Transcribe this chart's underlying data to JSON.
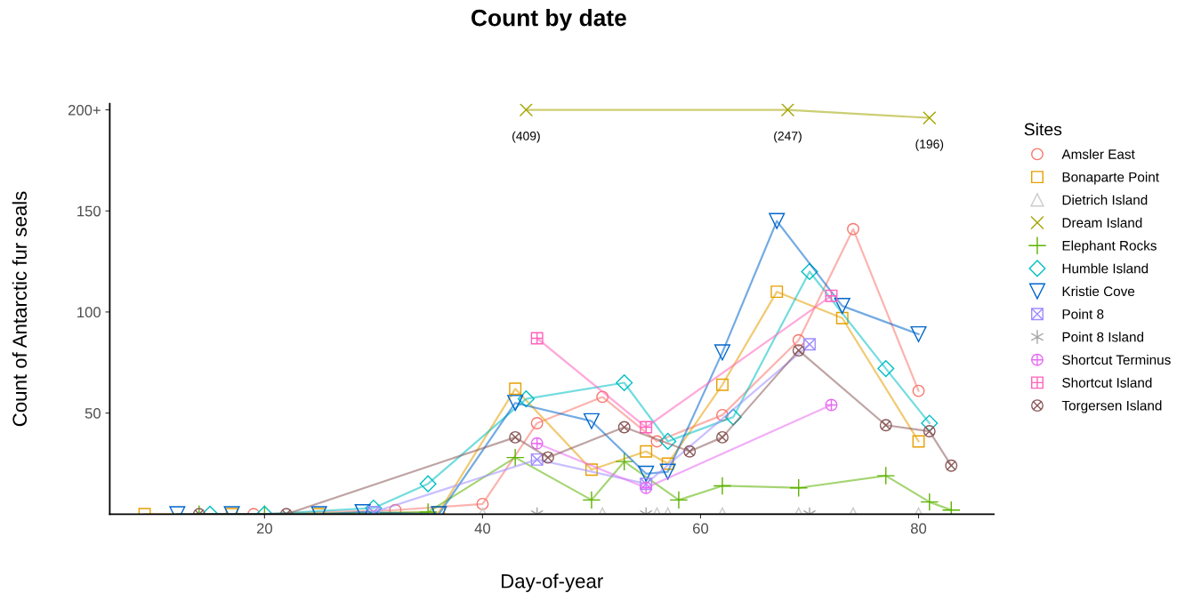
{
  "chart_data": {
    "type": "line",
    "title": "Count by date",
    "xlabel": "Day-of-year",
    "ylabel": "Count of Antarctic fur seals",
    "legend_title": "Sites",
    "legend": "right",
    "grid": false,
    "xlim": [
      5.8,
      86.9
    ],
    "xticks": [
      20,
      40,
      60,
      80
    ],
    "ylim": [
      0,
      203
    ],
    "yticks": [
      50,
      100,
      150,
      {
        "value": 200,
        "label": "200+"
      }
    ],
    "series": [
      {
        "name": "Amsler East",
        "color": "#f8766d",
        "marker": "circle",
        "x": [
          19,
          32,
          40,
          45,
          51,
          56,
          62,
          69,
          74,
          80
        ],
        "values": [
          0,
          2,
          5,
          45,
          58,
          36,
          49,
          86,
          141,
          61
        ]
      },
      {
        "name": "Bonaparte Point",
        "color": "#e69f00",
        "marker": "square",
        "x": [
          9,
          17,
          25,
          36,
          43,
          50,
          55,
          57,
          62,
          67,
          73,
          80
        ],
        "values": [
          0,
          0,
          0,
          1,
          62,
          22,
          31,
          25,
          64,
          110,
          97,
          36
        ]
      },
      {
        "name": "Dietrich Island",
        "color": "#cccccc",
        "marker": "triangle",
        "x": [
          40,
          51,
          56,
          57,
          62,
          69,
          74,
          80
        ],
        "values": [
          0,
          0,
          0,
          0,
          0,
          0,
          0,
          0
        ]
      },
      {
        "name": "Dream Island",
        "color": "#a3a500",
        "marker": "x",
        "x": [
          44,
          68,
          81
        ],
        "values": [
          200,
          200,
          196
        ]
      },
      {
        "name": "Elephant Rocks",
        "color": "#5bb300",
        "marker": "plus",
        "x": [
          14,
          20,
          35,
          43,
          50,
          53,
          58,
          62,
          69,
          77,
          81,
          83
        ],
        "values": [
          0,
          0,
          1,
          28,
          7,
          26,
          7,
          14,
          13,
          19,
          6,
          2
        ]
      },
      {
        "name": "Humble Island",
        "color": "#00bfc4",
        "marker": "diamond",
        "x": [
          15,
          20,
          30,
          35,
          44,
          53,
          57,
          63,
          70,
          77,
          81
        ],
        "values": [
          0,
          0,
          3,
          15,
          57,
          65,
          36,
          48,
          120,
          72,
          45
        ]
      },
      {
        "name": "Kristie Cove",
        "color": "#0066cc",
        "marker": "triangle_down",
        "x": [
          12,
          17,
          25,
          29,
          36,
          43,
          50,
          55,
          57,
          62,
          67,
          73,
          80
        ],
        "values": [
          0,
          0,
          0,
          1,
          0,
          55,
          46,
          20,
          21,
          80,
          145,
          103,
          89
        ]
      },
      {
        "name": "Point 8",
        "color": "#9f8cff",
        "marker": "square_x",
        "x": [
          30,
          45,
          55,
          70
        ],
        "values": [
          1,
          27,
          15,
          84
        ]
      },
      {
        "name": "Point 8 Island",
        "color": "#a6a6a6",
        "marker": "cross",
        "x": [
          45,
          55,
          70
        ],
        "values": [
          0,
          0,
          0
        ]
      },
      {
        "name": "Shortcut Terminus",
        "color": "#e76bf3",
        "marker": "circle_plus",
        "x": [
          45,
          55,
          72
        ],
        "values": [
          35,
          13,
          54
        ]
      },
      {
        "name": "Shortcut Island",
        "color": "#ff62bc",
        "marker": "square_plus",
        "x": [
          45,
          55,
          72
        ],
        "values": [
          87,
          43,
          108
        ]
      },
      {
        "name": "Torgersen Island",
        "color": "#8b5a5a",
        "marker": "circle_x",
        "x": [
          14,
          22,
          43,
          46,
          53,
          59,
          62,
          69,
          77,
          81,
          83
        ],
        "values": [
          0,
          0,
          38,
          28,
          43,
          31,
          38,
          81,
          44,
          41,
          24
        ]
      }
    ],
    "annotations": [
      {
        "text": "(409)",
        "x": 44,
        "y": 200
      },
      {
        "text": "(247)",
        "x": 68,
        "y": 200
      },
      {
        "text": "(196)",
        "x": 81,
        "y": 196
      }
    ]
  }
}
